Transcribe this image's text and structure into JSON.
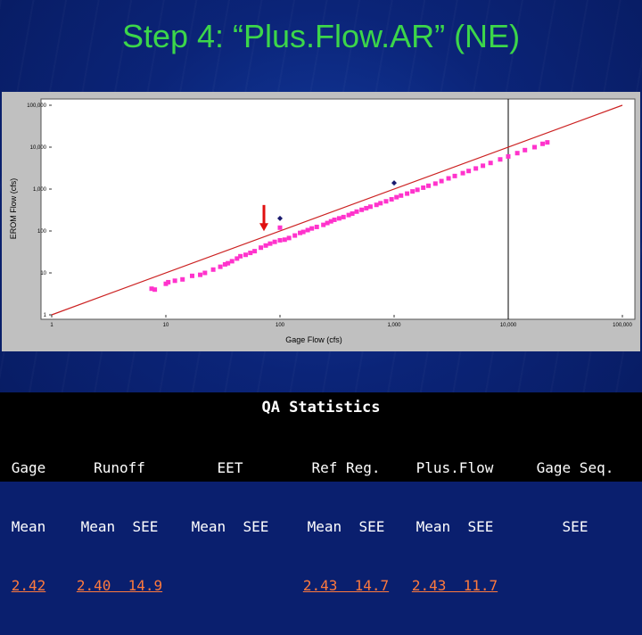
{
  "title": "Step 4: “Plus.Flow.AR” (NE)",
  "colors": {
    "title": "#3cd64a",
    "point_pink": "#ff33cc",
    "point_navy": "#1a1a6e",
    "fit_line": "#cc2222",
    "arrow": "#e01010",
    "stats_value": "#ff7a3d"
  },
  "chart_data": {
    "type": "scatter",
    "xlabel": "Gage Flow (cfs)",
    "ylabel": "EROM Flow (cfs)",
    "x_scale": "log",
    "y_scale": "log",
    "xlim": [
      1,
      100000
    ],
    "ylim": [
      1,
      100000
    ],
    "x_ticks": [
      "1",
      "10",
      "100",
      "1,000",
      "10,000",
      "100,000"
    ],
    "y_ticks": [
      "1",
      "10",
      "100",
      "1,000",
      "10,000",
      "100,000"
    ],
    "reference_line": "1:1",
    "vertical_marker_x": 10000,
    "series": [
      {
        "marker": "square",
        "color": "#ff33cc",
        "points": [
          [
            7.5,
            4.2
          ],
          [
            8.0,
            4.0
          ],
          [
            10.0,
            5.5
          ],
          [
            10.5,
            6.0
          ],
          [
            12,
            6.5
          ],
          [
            14,
            7.0
          ],
          [
            17,
            8.5
          ],
          [
            20,
            9.0
          ],
          [
            22,
            10
          ],
          [
            26,
            12
          ],
          [
            30,
            14
          ],
          [
            33,
            16
          ],
          [
            35,
            17
          ],
          [
            38,
            19
          ],
          [
            42,
            22
          ],
          [
            45,
            25
          ],
          [
            50,
            27
          ],
          [
            55,
            30
          ],
          [
            60,
            33
          ],
          [
            68,
            40
          ],
          [
            75,
            45
          ],
          [
            82,
            50
          ],
          [
            90,
            55
          ],
          [
            100,
            60
          ],
          [
            100,
            120
          ],
          [
            110,
            62
          ],
          [
            120,
            68
          ],
          [
            135,
            78
          ],
          [
            150,
            90
          ],
          [
            160,
            95
          ],
          [
            175,
            105
          ],
          [
            190,
            115
          ],
          [
            210,
            125
          ],
          [
            240,
            140
          ],
          [
            260,
            155
          ],
          [
            280,
            170
          ],
          [
            300,
            185
          ],
          [
            330,
            200
          ],
          [
            360,
            215
          ],
          [
            400,
            240
          ],
          [
            430,
            260
          ],
          [
            470,
            290
          ],
          [
            520,
            320
          ],
          [
            570,
            350
          ],
          [
            620,
            380
          ],
          [
            700,
            420
          ],
          [
            760,
            460
          ],
          [
            850,
            510
          ],
          [
            950,
            570
          ],
          [
            1050,
            640
          ],
          [
            1150,
            700
          ],
          [
            1300,
            780
          ],
          [
            1450,
            880
          ],
          [
            1600,
            960
          ],
          [
            1800,
            1080
          ],
          [
            2000,
            1200
          ],
          [
            2300,
            1350
          ],
          [
            2600,
            1550
          ],
          [
            3000,
            1800
          ],
          [
            3400,
            2050
          ],
          [
            4000,
            2400
          ],
          [
            4500,
            2700
          ],
          [
            5200,
            3100
          ],
          [
            6000,
            3600
          ],
          [
            7000,
            4200
          ],
          [
            8500,
            5100
          ],
          [
            10000,
            6000
          ],
          [
            12000,
            7200
          ],
          [
            14000,
            8500
          ],
          [
            17000,
            10000
          ],
          [
            20000,
            12000
          ],
          [
            22000,
            13000
          ]
        ]
      },
      {
        "marker": "diamond",
        "color": "#1a1a6e",
        "points": [
          [
            100,
            200
          ],
          [
            1000,
            1400
          ]
        ]
      }
    ]
  },
  "stats": {
    "title": "QA Statistics",
    "gage": {
      "line1": "Gage",
      "line2": "Mean",
      "value": "2.42"
    },
    "runoff": {
      "line1": "Runoff",
      "line2": "Mean  SEE",
      "value": "2.40  14.9"
    },
    "eet": {
      "line1": "EET",
      "line2": "Mean  SEE",
      "value": ""
    },
    "ref_reg": {
      "line1": "Ref Reg.",
      "line2": "Mean  SEE",
      "value": "2.43  14.7"
    },
    "plusflow": {
      "line1": "Plus.Flow",
      "line2": "Mean  SEE",
      "value": "2.43  11.7"
    },
    "gage_seq": {
      "line1": "Gage Seq.",
      "line2": "SEE",
      "value": ""
    }
  }
}
